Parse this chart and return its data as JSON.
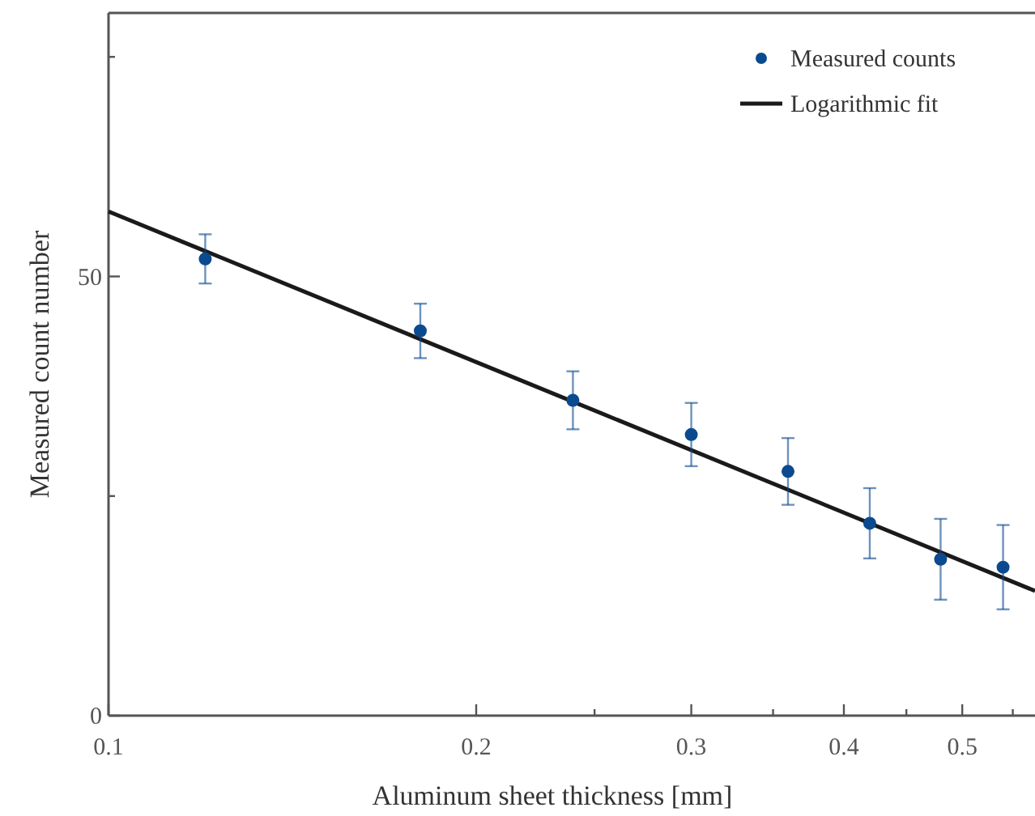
{
  "chart_data": {
    "type": "scatter",
    "xlabel": "Aluminum sheet thickness [mm]",
    "ylabel": "Measured count number",
    "log": "x",
    "xlim": [
      0.1,
      0.5735
    ],
    "xticks": [
      0.1,
      0.2,
      {
        "value": 0.25,
        "label": null
      },
      0.3,
      {
        "value": 0.35,
        "label": null
      },
      0.4,
      {
        "value": 0.45,
        "label": null
      },
      0.5,
      {
        "value": 0.55,
        "label": null
      }
    ],
    "ylim": [
      0,
      80
    ],
    "yticks": [
      0,
      {
        "value": 25,
        "label": null
      },
      50,
      {
        "value": 75,
        "label": null
      }
    ],
    "grid": false,
    "legend": "top right",
    "series": [
      {
        "name": "Measured counts",
        "color": "#0b4a8f",
        "marker": "circle",
        "x": [
          0.12,
          0.18,
          0.24,
          0.3,
          0.36,
          0.42,
          0.48,
          0.54
        ],
        "values": [
          52.0,
          43.8,
          35.9,
          32.0,
          27.8,
          21.9,
          17.8,
          16.9
        ],
        "errors": [
          2.8,
          3.1,
          3.3,
          3.6,
          3.8,
          4.0,
          4.6,
          4.8
        ]
      },
      {
        "name": "Logarithmic fit",
        "type": "line",
        "color": "#1a1a1a",
        "line_style": "solid",
        "x": [
          0.1,
          0.5735
        ],
        "values": [
          57.4,
          14.2
        ]
      }
    ]
  }
}
